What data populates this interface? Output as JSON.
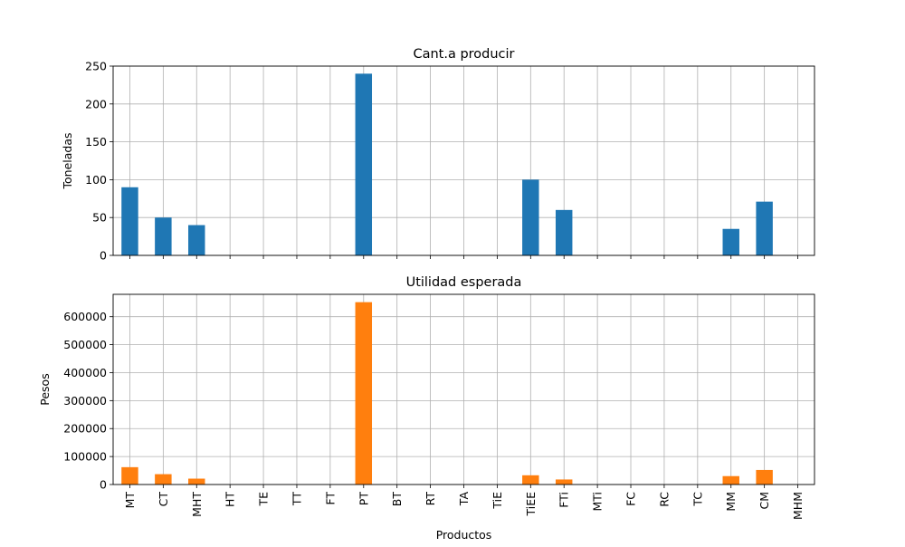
{
  "chart_data": [
    {
      "type": "bar",
      "title": "Cant.a producir",
      "xlabel": "",
      "ylabel": "Toneladas",
      "ylim": [
        0,
        250
      ],
      "yticks": [
        "0",
        "50",
        "100",
        "150",
        "200",
        "250"
      ],
      "grid": true,
      "color": "#1f77b4",
      "categories": [
        "MT",
        "CT",
        "MHT",
        "HT",
        "TE",
        "TT",
        "FT",
        "PT",
        "BT",
        "RT",
        "TA",
        "TiE",
        "TiEE",
        "FTi",
        "MTi",
        "FC",
        "RC",
        "TC",
        "MM",
        "CM",
        "MHM"
      ],
      "values": [
        90,
        50,
        40,
        0,
        0,
        0,
        0,
        240,
        0,
        0,
        0,
        0,
        100,
        60,
        0,
        0,
        0,
        0,
        35,
        71,
        0
      ]
    },
    {
      "type": "bar",
      "title": "Utilidad esperada",
      "xlabel": "Productos",
      "ylabel": "Pesos",
      "ylim": [
        0,
        680000
      ],
      "yticks": [
        "0",
        "100000",
        "200000",
        "300000",
        "400000",
        "500000",
        "600000"
      ],
      "grid": true,
      "color": "#ff7f0e",
      "categories": [
        "MT",
        "CT",
        "MHT",
        "HT",
        "TE",
        "TT",
        "FT",
        "PT",
        "BT",
        "RT",
        "TA",
        "TiE",
        "TiEE",
        "FTi",
        "MTi",
        "FC",
        "RC",
        "TC",
        "MM",
        "CM",
        "MHM"
      ],
      "values": [
        62000,
        37000,
        21000,
        0,
        0,
        0,
        0,
        652000,
        0,
        0,
        0,
        0,
        33000,
        18000,
        0,
        0,
        0,
        0,
        30000,
        52000,
        0
      ]
    }
  ]
}
